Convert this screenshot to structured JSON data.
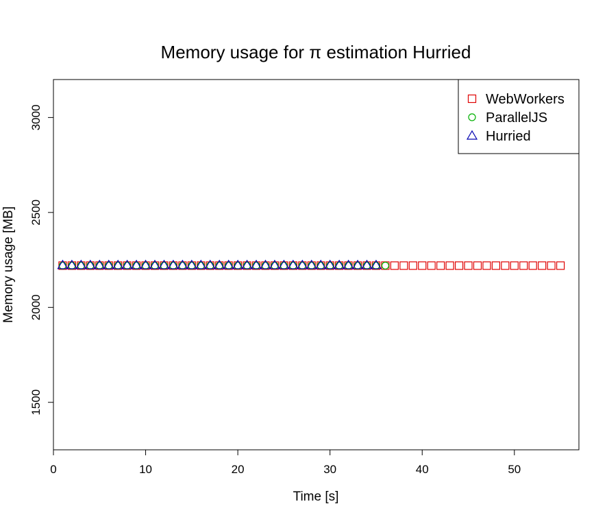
{
  "chart_data": {
    "type": "scatter",
    "title": "Memory usage for π estimation Hurried",
    "xlabel": "Time [s]",
    "ylabel": "Memory usage [MB]",
    "xlim": [
      0,
      57
    ],
    "ylim": [
      1250,
      3200
    ],
    "xticks": [
      0,
      10,
      20,
      30,
      40,
      50
    ],
    "yticks": [
      1500,
      2000,
      2500,
      3000
    ],
    "grid": false,
    "legend_position": "top-right",
    "series": [
      {
        "name": "WebWorkers",
        "marker": "square",
        "color": "#DF0000",
        "x_start": 1,
        "x_end": 55,
        "y": 2220
      },
      {
        "name": "ParallelJS",
        "marker": "circle",
        "color": "#00B000",
        "x_start": 1,
        "x_end": 36,
        "y": 2220
      },
      {
        "name": "Hurried",
        "marker": "triangle",
        "color": "#0000B0",
        "x_start": 1,
        "x_end": 35,
        "y": 2222
      }
    ]
  }
}
